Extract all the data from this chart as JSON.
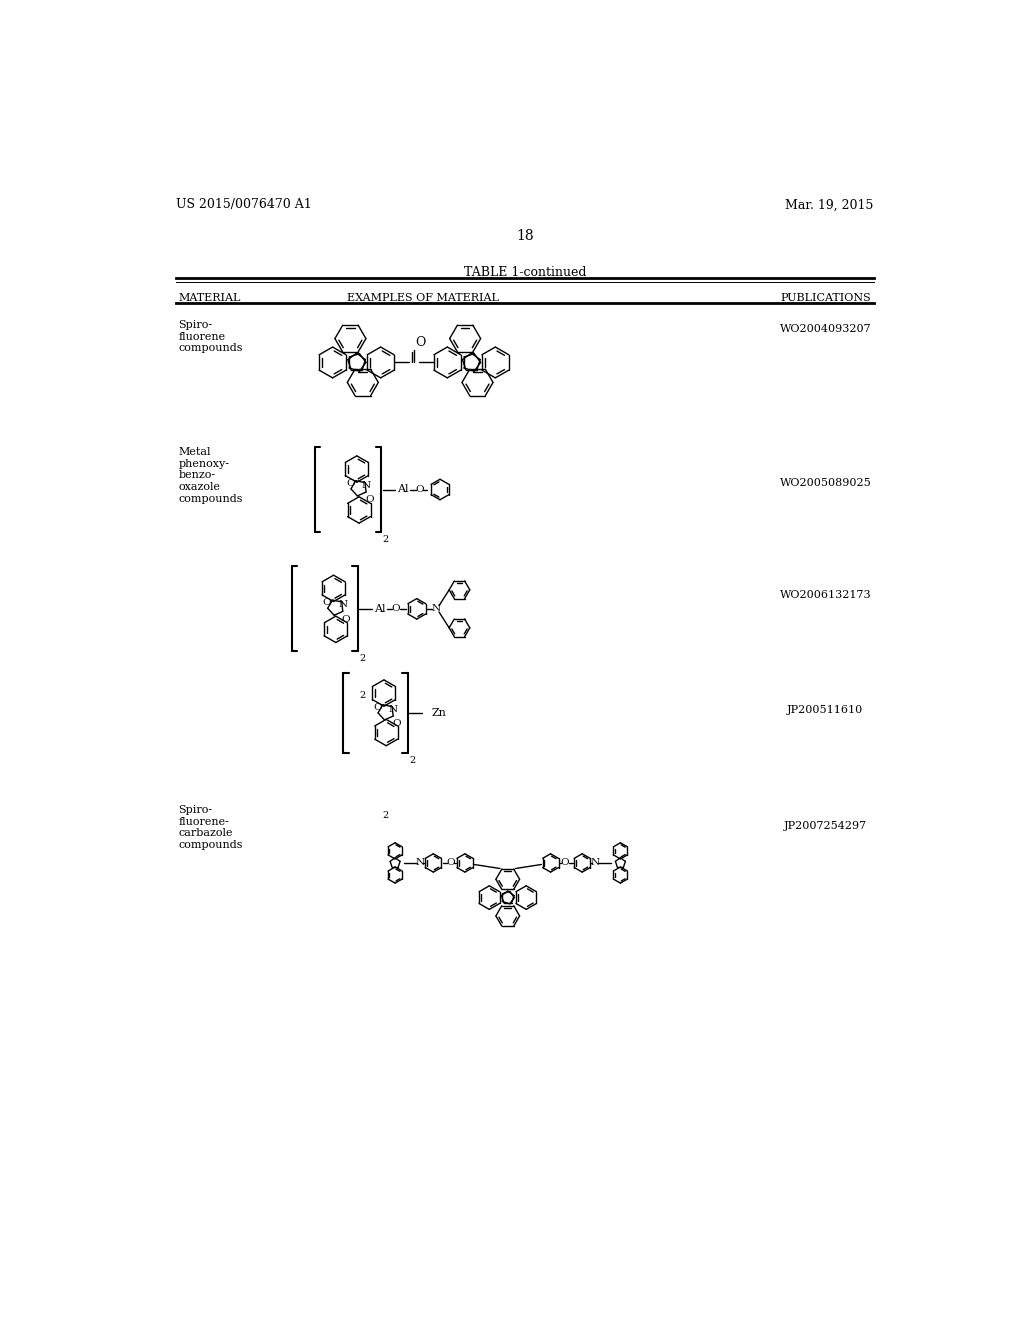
{
  "bg": "#ffffff",
  "header_left": "US 2015/0076470 A1",
  "header_right": "Mar. 19, 2015",
  "page_num": "18",
  "table_title": "TABLE 1-continued",
  "col_material": "MATERIAL",
  "col_examples": "EXAMPLES OF MATERIAL",
  "col_pub": "PUBLICATIONS",
  "row_materials": [
    "Spiro-\nfluorene\ncompounds",
    "Metal\nphenoxy-\nbenzo-\noxazole\ncompounds",
    "",
    "",
    "Spiro-\nfluorene-\ncarbazole\ncompounds"
  ],
  "row_pubs": [
    "WO2004093207",
    "WO2005089025",
    "WO2006132173",
    "JP200511610",
    "JP2007254297"
  ],
  "row_pub_y": [
    215,
    415,
    560,
    710,
    860
  ],
  "row_mat_y": [
    210,
    375,
    0,
    0,
    840
  ]
}
